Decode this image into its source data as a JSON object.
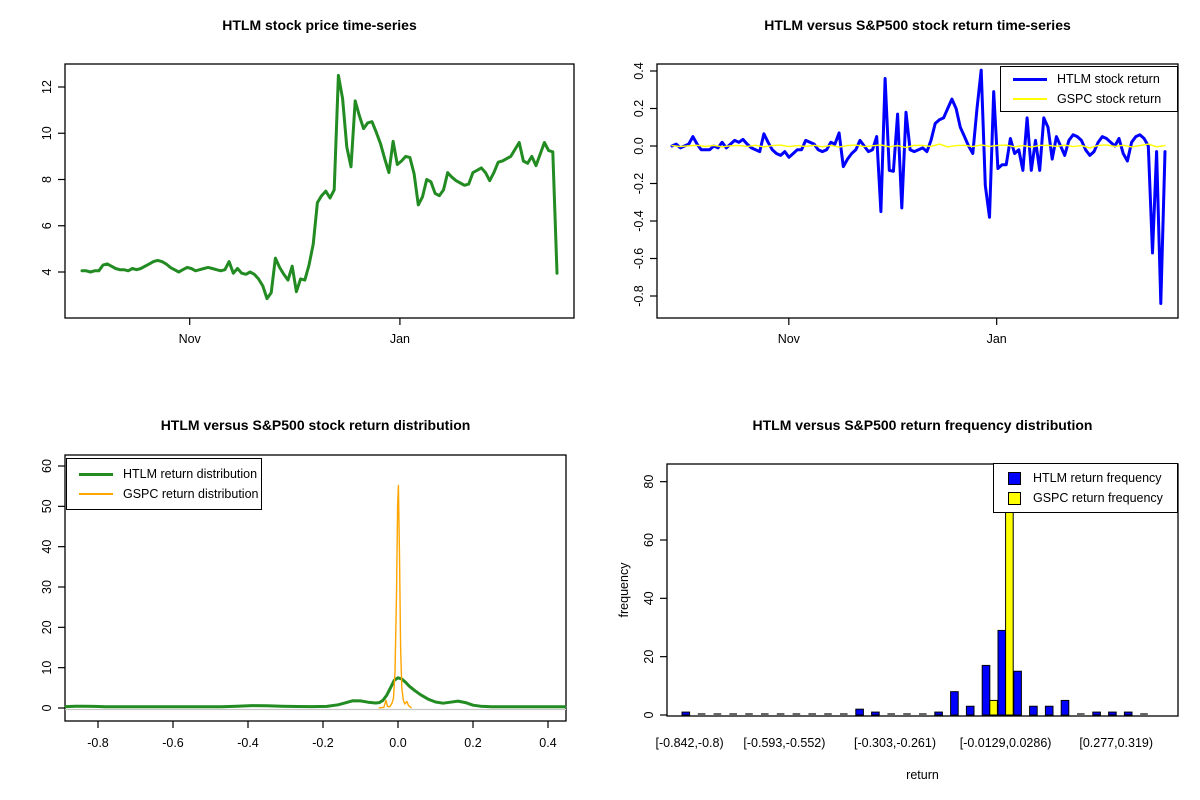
{
  "colors": {
    "htlm_green": "#228B22",
    "htlm_blue": "#0000FF",
    "gspc_yellow": "#FFFF00",
    "gspc_orange": "#FFA500",
    "axis": "#000000",
    "zero_line_gray": "#C8C8C8",
    "background": "#FFFFFF"
  },
  "chart_data": [
    {
      "panel": "price-timeseries",
      "type": "line",
      "title": "HTLM stock price time-series",
      "x_ticks": [
        {
          "pos": 0.245,
          "label": "Nov"
        },
        {
          "pos": 0.658,
          "label": "Jan"
        }
      ],
      "y_ticks": [
        {
          "v": 4,
          "label": "4"
        },
        {
          "v": 6,
          "label": "6"
        },
        {
          "v": 8,
          "label": "8"
        },
        {
          "v": 10,
          "label": "10"
        },
        {
          "v": 12,
          "label": "12"
        }
      ],
      "ylim": [
        2.1,
        12.9
      ],
      "grid": false,
      "series": [
        {
          "name": "HTLM stock price",
          "color": "#228B22",
          "width": 3,
          "values": [
            4.05,
            4.05,
            4.0,
            4.05,
            4.05,
            4.3,
            4.35,
            4.25,
            4.15,
            4.1,
            4.1,
            4.05,
            4.15,
            4.1,
            4.15,
            4.25,
            4.35,
            4.45,
            4.5,
            4.45,
            4.35,
            4.2,
            4.1,
            4.0,
            4.1,
            4.2,
            4.15,
            4.05,
            4.1,
            4.15,
            4.2,
            4.15,
            4.1,
            4.05,
            4.1,
            4.45,
            3.95,
            4.15,
            3.95,
            3.9,
            4.0,
            3.9,
            3.7,
            3.4,
            2.85,
            3.1,
            4.6,
            4.2,
            3.9,
            3.65,
            4.25,
            3.15,
            3.7,
            3.65,
            4.3,
            5.2,
            7.0,
            7.3,
            7.5,
            7.2,
            7.55,
            12.5,
            11.5,
            9.4,
            8.55,
            11.4,
            10.75,
            10.2,
            10.45,
            10.5,
            10.05,
            9.55,
            8.9,
            8.3,
            9.65,
            8.65,
            8.8,
            9.0,
            8.95,
            8.25,
            6.9,
            7.25,
            8.0,
            7.9,
            7.4,
            7.3,
            7.55,
            8.3,
            8.1,
            7.95,
            7.85,
            7.75,
            7.8,
            8.3,
            8.4,
            8.5,
            8.3,
            7.95,
            8.3,
            8.75,
            8.8,
            8.9,
            9.0,
            9.3,
            9.6,
            8.8,
            8.7,
            9.0,
            8.6,
            9.1,
            9.6,
            9.25,
            9.2,
            3.95
          ]
        }
      ]
    },
    {
      "panel": "return-timeseries",
      "type": "line",
      "title": "HTLM versus S&P500 stock return time-series",
      "x_ticks": [
        {
          "pos": 0.253,
          "label": "Nov"
        },
        {
          "pos": 0.652,
          "label": "Jan"
        }
      ],
      "y_ticks": [
        {
          "v": 0.4,
          "label": "0.4"
        },
        {
          "v": 0.2,
          "label": "0.2"
        },
        {
          "v": 0.0,
          "label": "0.0"
        },
        {
          "v": -0.2,
          "label": "-0.2"
        },
        {
          "v": -0.4,
          "label": "-0.4"
        },
        {
          "v": -0.6,
          "label": "-0.6"
        },
        {
          "v": -0.8,
          "label": "-0.8"
        }
      ],
      "ylim": [
        -0.9,
        0.45
      ],
      "grid": false,
      "legend_position": "top-right",
      "series": [
        {
          "name": "HTLM stock return",
          "color": "#0000FF",
          "width": 3,
          "values": [
            0.0,
            0.01,
            -0.01,
            0.0,
            0.01,
            0.05,
            0.01,
            -0.02,
            -0.02,
            -0.02,
            0.0,
            -0.01,
            0.02,
            -0.01,
            0.01,
            0.03,
            0.02,
            0.035,
            0.01,
            -0.01,
            -0.02,
            -0.03,
            0.065,
            0.02,
            -0.02,
            -0.04,
            -0.05,
            -0.03,
            -0.06,
            -0.04,
            -0.02,
            -0.02,
            0.03,
            0.02,
            0.01,
            -0.02,
            -0.03,
            -0.02,
            0.02,
            0.01,
            0.07,
            -0.11,
            -0.07,
            -0.04,
            -0.02,
            0.03,
            0.0,
            -0.03,
            -0.02,
            0.05,
            -0.35,
            0.36,
            -0.13,
            -0.135,
            0.17,
            -0.33,
            0.18,
            -0.02,
            -0.03,
            -0.02,
            -0.01,
            -0.03,
            0.03,
            0.12,
            0.14,
            0.15,
            0.2,
            0.25,
            0.2,
            0.1,
            0.05,
            0.0,
            -0.04,
            0.2,
            0.405,
            -0.21,
            -0.38,
            0.29,
            -0.12,
            -0.1,
            -0.1,
            0.04,
            -0.04,
            -0.02,
            -0.13,
            0.15,
            -0.13,
            0.03,
            -0.13,
            0.15,
            0.1,
            -0.07,
            0.05,
            0.0,
            -0.05,
            0.03,
            0.06,
            0.05,
            0.03,
            -0.02,
            -0.05,
            -0.03,
            0.02,
            0.05,
            0.04,
            0.02,
            0.0,
            0.04,
            -0.04,
            -0.08,
            0.02,
            0.05,
            0.06,
            0.04,
            0.0,
            -0.57,
            -0.03,
            -0.84,
            -0.03
          ]
        },
        {
          "name": "GSPC stock return",
          "color": "#FFFF00",
          "width": 1.4,
          "values": [
            0.002,
            -0.003,
            0.001,
            0.004,
            -0.002,
            0.003,
            -0.004,
            0.001,
            0.003,
            -0.002,
            0.004,
            -0.005,
            0.002,
            0.005,
            -0.003,
            0.002,
            -0.002,
            0.004,
            -0.004,
            0.003,
            -0.006,
            0.002,
            0.005,
            -0.003,
            0.001,
            0.006,
            -0.004,
            0.002,
            -0.008,
            0.004,
            0.003,
            -0.002,
            0.01,
            -0.005,
            0.002,
            0.004,
            -0.003,
            0.006,
            -0.002,
            0.003,
            0.005,
            -0.004,
            0.002,
            -0.006,
            0.003,
            0.004,
            -0.002,
            0.005,
            -0.003,
            0.002,
            -0.01,
            0.003,
            0.006,
            -0.002,
            0.004,
            -0.005,
            0.002,
            0.01,
            -0.004,
            0.002
          ]
        }
      ]
    },
    {
      "panel": "return-distribution",
      "type": "density-line",
      "title": "HTLM versus S&P500 stock return distribution",
      "x_ticks": [
        {
          "v": -0.8,
          "label": "-0.8"
        },
        {
          "v": -0.6,
          "label": "-0.6"
        },
        {
          "v": -0.4,
          "label": "-0.4"
        },
        {
          "v": -0.2,
          "label": "-0.2"
        },
        {
          "v": 0.0,
          "label": "0.0"
        },
        {
          "v": 0.2,
          "label": "0.2"
        },
        {
          "v": 0.4,
          "label": "0.4"
        }
      ],
      "y_ticks": [
        {
          "v": 0,
          "label": "0"
        },
        {
          "v": 10,
          "label": "10"
        },
        {
          "v": 20,
          "label": "20"
        },
        {
          "v": 30,
          "label": "30"
        },
        {
          "v": 40,
          "label": "40"
        },
        {
          "v": 50,
          "label": "50"
        },
        {
          "v": 60,
          "label": "60"
        }
      ],
      "xlim": [
        -0.89,
        0.45
      ],
      "ylim": [
        0,
        60
      ],
      "grid": false,
      "legend_position": "top-left",
      "zero_line": true,
      "series": [
        {
          "name": "HTLM return distribution",
          "color": "#228B22",
          "width": 3,
          "points": [
            [
              -0.885,
              0.35
            ],
            [
              -0.86,
              0.42
            ],
            [
              -0.84,
              0.45
            ],
            [
              -0.81,
              0.4
            ],
            [
              -0.78,
              0.33
            ],
            [
              -0.72,
              0.3
            ],
            [
              -0.65,
              0.3
            ],
            [
              -0.58,
              0.3
            ],
            [
              -0.52,
              0.3
            ],
            [
              -0.47,
              0.32
            ],
            [
              -0.43,
              0.45
            ],
            [
              -0.39,
              0.6
            ],
            [
              -0.35,
              0.55
            ],
            [
              -0.31,
              0.45
            ],
            [
              -0.27,
              0.38
            ],
            [
              -0.23,
              0.35
            ],
            [
              -0.19,
              0.4
            ],
            [
              -0.16,
              0.8
            ],
            [
              -0.14,
              1.3
            ],
            [
              -0.12,
              1.8
            ],
            [
              -0.1,
              1.75
            ],
            [
              -0.08,
              1.45
            ],
            [
              -0.06,
              1.25
            ],
            [
              -0.05,
              1.35
            ],
            [
              -0.04,
              1.9
            ],
            [
              -0.03,
              3.2
            ],
            [
              -0.02,
              5.0
            ],
            [
              -0.01,
              6.9
            ],
            [
              0.0,
              7.5
            ],
            [
              0.01,
              7.2
            ],
            [
              0.02,
              6.4
            ],
            [
              0.03,
              5.4
            ],
            [
              0.045,
              4.3
            ],
            [
              0.06,
              3.3
            ],
            [
              0.08,
              2.2
            ],
            [
              0.1,
              1.5
            ],
            [
              0.12,
              1.2
            ],
            [
              0.14,
              1.45
            ],
            [
              0.16,
              1.7
            ],
            [
              0.18,
              1.35
            ],
            [
              0.2,
              0.7
            ],
            [
              0.22,
              0.45
            ],
            [
              0.25,
              0.33
            ],
            [
              0.3,
              0.3
            ],
            [
              0.35,
              0.3
            ],
            [
              0.4,
              0.3
            ],
            [
              0.445,
              0.3
            ]
          ]
        },
        {
          "name": "GSPC return distribution",
          "color": "#FFA500",
          "width": 1.4,
          "points": [
            [
              -0.05,
              0.05
            ],
            [
              -0.038,
              0.15
            ],
            [
              -0.032,
              1.9
            ],
            [
              -0.028,
              0.4
            ],
            [
              -0.022,
              0.3
            ],
            [
              -0.016,
              1.2
            ],
            [
              -0.012,
              2.5
            ],
            [
              -0.008,
              9.0
            ],
            [
              -0.004,
              28.0
            ],
            [
              -0.001,
              50.0
            ],
            [
              0.001,
              55.2
            ],
            [
              0.004,
              38.0
            ],
            [
              0.007,
              15.0
            ],
            [
              0.01,
              5.0
            ],
            [
              0.014,
              2.0
            ],
            [
              0.018,
              1.0
            ],
            [
              0.024,
              1.6
            ],
            [
              0.028,
              0.6
            ],
            [
              0.035,
              0.1
            ]
          ]
        }
      ]
    },
    {
      "panel": "return-frequency",
      "type": "bar",
      "title": "HTLM versus S&P500 return frequency distribution",
      "xlabel": "return",
      "ylabel": "frequency",
      "y_ticks": [
        {
          "v": 0,
          "label": "0"
        },
        {
          "v": 20,
          "label": "20"
        },
        {
          "v": 40,
          "label": "40"
        },
        {
          "v": 60,
          "label": "60"
        },
        {
          "v": 80,
          "label": "80"
        }
      ],
      "ylim": [
        0,
        86
      ],
      "n_bins": 30,
      "bin_labels": [
        {
          "bin": 1,
          "label": "[-0.842,-0.8)"
        },
        {
          "bin": 7,
          "label": "[-0.593,-0.552)"
        },
        {
          "bin": 14,
          "label": "[-0.303,-0.261)"
        },
        {
          "bin": 21,
          "label": "[-0.0129,0.0286)"
        },
        {
          "bin": 28,
          "label": "[0.277,0.319)"
        }
      ],
      "legend_position": "top-right",
      "series": [
        {
          "name": "HTLM return frequency",
          "color": "#0000FF",
          "values": [
            1,
            0,
            0,
            0,
            0,
            0,
            0,
            0,
            0,
            0,
            0,
            2,
            1,
            0,
            0,
            0,
            1,
            8,
            3,
            17,
            29,
            15,
            3,
            3,
            5,
            0,
            1,
            1,
            1,
            0
          ]
        },
        {
          "name": "GSPC return frequency",
          "color": "#FFFF00",
          "values": [
            0,
            0,
            0,
            0,
            0,
            0,
            0,
            0,
            0,
            0,
            0,
            0,
            0,
            0,
            0,
            0,
            0,
            0,
            0,
            5,
            70,
            0,
            0,
            0,
            0,
            0,
            0,
            0,
            0,
            0
          ]
        }
      ]
    }
  ]
}
